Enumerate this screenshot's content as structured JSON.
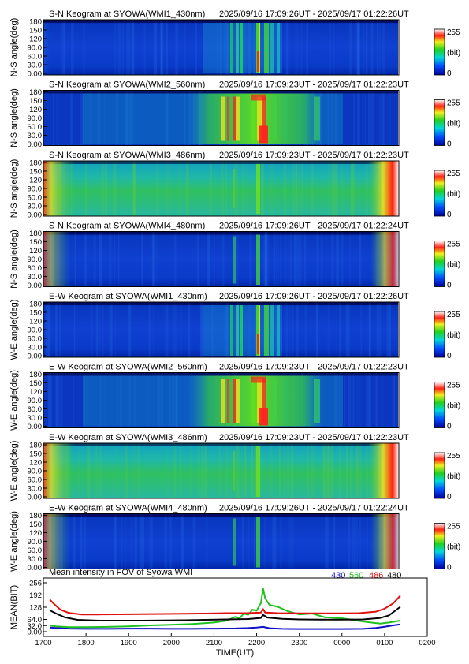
{
  "panels": [
    {
      "title": "S-N Keogram at SYOWA(WMI1_430nm)",
      "time_range": "2025/09/16 17:09:26UT - 2025/09/17 01:22:26UT",
      "ylabel": "N-S angle(deg)"
    },
    {
      "title": "S-N Keogram at SYOWA(WMI2_560nm)",
      "time_range": "2025/09/16 17:09:23UT - 2025/09/17 01:22:23UT",
      "ylabel": "N-S angle(deg)"
    },
    {
      "title": "S-N Keogram at SYOWA(WMI3_486nm)",
      "time_range": "2025/09/16 17:09:23UT - 2025/09/17 01:22:23UT",
      "ylabel": "N-S angle(deg)"
    },
    {
      "title": "S-N Keogram at SYOWA(WMI4_480nm)",
      "time_range": "2025/09/16 17:09:26UT - 2025/09/17 01:22:24UT",
      "ylabel": "N-S angle(deg)"
    },
    {
      "title": "E-W Keogram at SYOWA(WMI1_430nm)",
      "time_range": "2025/09/16 17:09:26UT - 2025/09/17 01:22:26UT",
      "ylabel": "W-E angle(deg)"
    },
    {
      "title": "E-W Keogram at SYOWA(WMI2_560nm)",
      "time_range": "2025/09/16 17:09:23UT - 2025/09/17 01:22:23UT",
      "ylabel": "W-E angle(deg)"
    },
    {
      "title": "E-W Keogram at SYOWA(WMI3_486nm)",
      "time_range": "2025/09/16 17:09:23UT - 2025/09/17 01:22:23UT",
      "ylabel": "W-E angle(deg)"
    },
    {
      "title": "E-W Keogram at SYOWA(WMI4_480nm)",
      "time_range": "2025/09/16 17:09:26UT - 2025/09/17 01:22:24UT",
      "ylabel": "W-E angle(deg)"
    }
  ],
  "angle_ticks": [
    "0.00",
    "30.0",
    "60.0",
    "90.0",
    "120",
    "150",
    "180"
  ],
  "colorbar": {
    "max": "255",
    "unit": "(bit)",
    "min": "0"
  },
  "chart_data": {
    "type": "line",
    "title": "Mean intensity in FOV of Syowa WMI",
    "xlabel": "TIME(UT)",
    "ylabel": "MEAN(BIT)",
    "x_ticks": [
      "1700",
      "1800",
      "1900",
      "2000",
      "2100",
      "2200",
      "2300",
      "0000",
      "0100",
      "0200"
    ],
    "y_ticks": [
      "0.00",
      "32.0",
      "64.0",
      "128",
      "192",
      "256"
    ],
    "ylim": [
      0,
      256
    ],
    "series": [
      {
        "name": "430",
        "color": "#1010c8",
        "points": [
          [
            17.15,
            22
          ],
          [
            17.3,
            20
          ],
          [
            17.6,
            16
          ],
          [
            18.0,
            15
          ],
          [
            18.5,
            15
          ],
          [
            19.0,
            16
          ],
          [
            19.5,
            16
          ],
          [
            20.0,
            15
          ],
          [
            20.5,
            15
          ],
          [
            21.0,
            16
          ],
          [
            21.5,
            17
          ],
          [
            21.8,
            19
          ],
          [
            22.0,
            22
          ],
          [
            22.15,
            25
          ],
          [
            22.3,
            18
          ],
          [
            22.6,
            15
          ],
          [
            23.0,
            14
          ],
          [
            23.5,
            14
          ],
          [
            24.0,
            14
          ],
          [
            24.5,
            15
          ],
          [
            24.8,
            20
          ],
          [
            25.0,
            26
          ],
          [
            25.2,
            33
          ],
          [
            25.37,
            38
          ]
        ]
      },
      {
        "name": "560",
        "color": "#20c020",
        "points": [
          [
            17.15,
            32
          ],
          [
            17.3,
            28
          ],
          [
            17.6,
            24
          ],
          [
            18.0,
            24
          ],
          [
            18.5,
            25
          ],
          [
            19.0,
            28
          ],
          [
            19.5,
            33
          ],
          [
            20.0,
            36
          ],
          [
            20.5,
            40
          ],
          [
            21.0,
            48
          ],
          [
            21.3,
            58
          ],
          [
            21.5,
            78
          ],
          [
            21.6,
            70
          ],
          [
            21.7,
            95
          ],
          [
            21.8,
            88
          ],
          [
            21.9,
            115
          ],
          [
            22.0,
            110
          ],
          [
            22.1,
            150
          ],
          [
            22.15,
            225
          ],
          [
            22.2,
            175
          ],
          [
            22.3,
            140
          ],
          [
            22.5,
            130
          ],
          [
            22.7,
            110
          ],
          [
            23.0,
            90
          ],
          [
            23.3,
            95
          ],
          [
            23.6,
            75
          ],
          [
            24.0,
            70
          ],
          [
            24.3,
            60
          ],
          [
            24.6,
            50
          ],
          [
            24.9,
            42
          ],
          [
            25.1,
            48
          ],
          [
            25.37,
            58
          ]
        ]
      },
      {
        "name": "486",
        "color": "#e01010",
        "points": [
          [
            17.15,
            168
          ],
          [
            17.25,
            145
          ],
          [
            17.4,
            115
          ],
          [
            17.6,
            98
          ],
          [
            17.9,
            90
          ],
          [
            18.3,
            90
          ],
          [
            18.8,
            91
          ],
          [
            19.3,
            92
          ],
          [
            19.8,
            93
          ],
          [
            20.3,
            94
          ],
          [
            20.8,
            95
          ],
          [
            21.3,
            97
          ],
          [
            21.8,
            97
          ],
          [
            22.1,
            100
          ],
          [
            22.15,
            118
          ],
          [
            22.2,
            100
          ],
          [
            22.5,
            97
          ],
          [
            23.0,
            96
          ],
          [
            23.5,
            96
          ],
          [
            24.0,
            96
          ],
          [
            24.4,
            97
          ],
          [
            24.8,
            105
          ],
          [
            25.0,
            120
          ],
          [
            25.2,
            148
          ],
          [
            25.37,
            188
          ]
        ]
      },
      {
        "name": "480",
        "color": "#000000",
        "points": [
          [
            17.15,
            112
          ],
          [
            17.3,
            95
          ],
          [
            17.5,
            75
          ],
          [
            17.8,
            62
          ],
          [
            18.3,
            58
          ],
          [
            18.8,
            58
          ],
          [
            19.3,
            58
          ],
          [
            19.8,
            59
          ],
          [
            20.3,
            60
          ],
          [
            20.8,
            62
          ],
          [
            21.3,
            64
          ],
          [
            21.8,
            66
          ],
          [
            22.1,
            72
          ],
          [
            22.15,
            88
          ],
          [
            22.25,
            74
          ],
          [
            22.6,
            67
          ],
          [
            23.0,
            64
          ],
          [
            23.5,
            63
          ],
          [
            24.0,
            63
          ],
          [
            24.5,
            64
          ],
          [
            24.9,
            72
          ],
          [
            25.1,
            85
          ],
          [
            25.37,
            130
          ]
        ]
      }
    ]
  }
}
